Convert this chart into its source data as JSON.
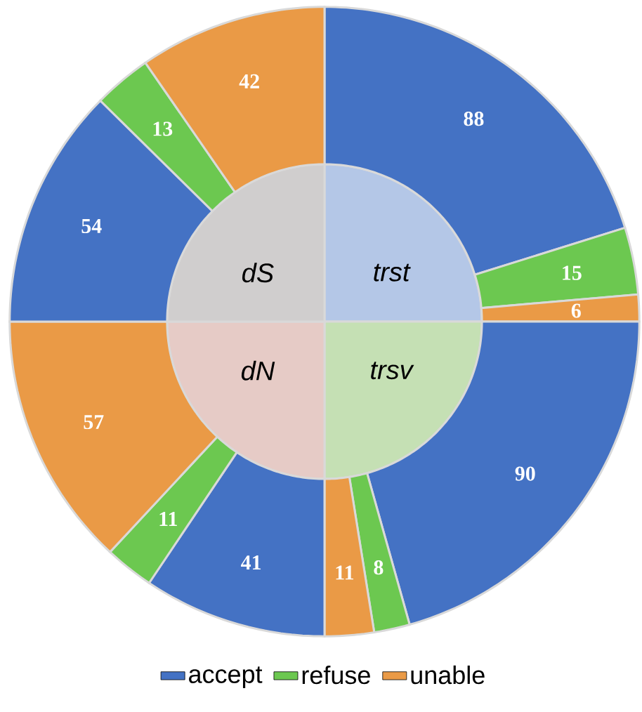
{
  "chart_data": {
    "type": "other",
    "categories": [
      "trst",
      "trsv",
      "dN",
      "dS"
    ],
    "colors": [
      "#b4c7e7",
      "#c5e0b4",
      "#e6cbc6",
      "#d0cece"
    ],
    "series": [
      {
        "name": "accept",
        "color": "#4472c4",
        "values": [
          88,
          90,
          41,
          54
        ]
      },
      {
        "name": "refuse",
        "color": "#6cc850",
        "values": [
          15,
          8,
          11,
          13
        ]
      },
      {
        "name": "unable",
        "color": "#ea9a46",
        "values": [
          6,
          11,
          57,
          42
        ]
      }
    ],
    "data_labels": true,
    "legend": "bottom"
  }
}
